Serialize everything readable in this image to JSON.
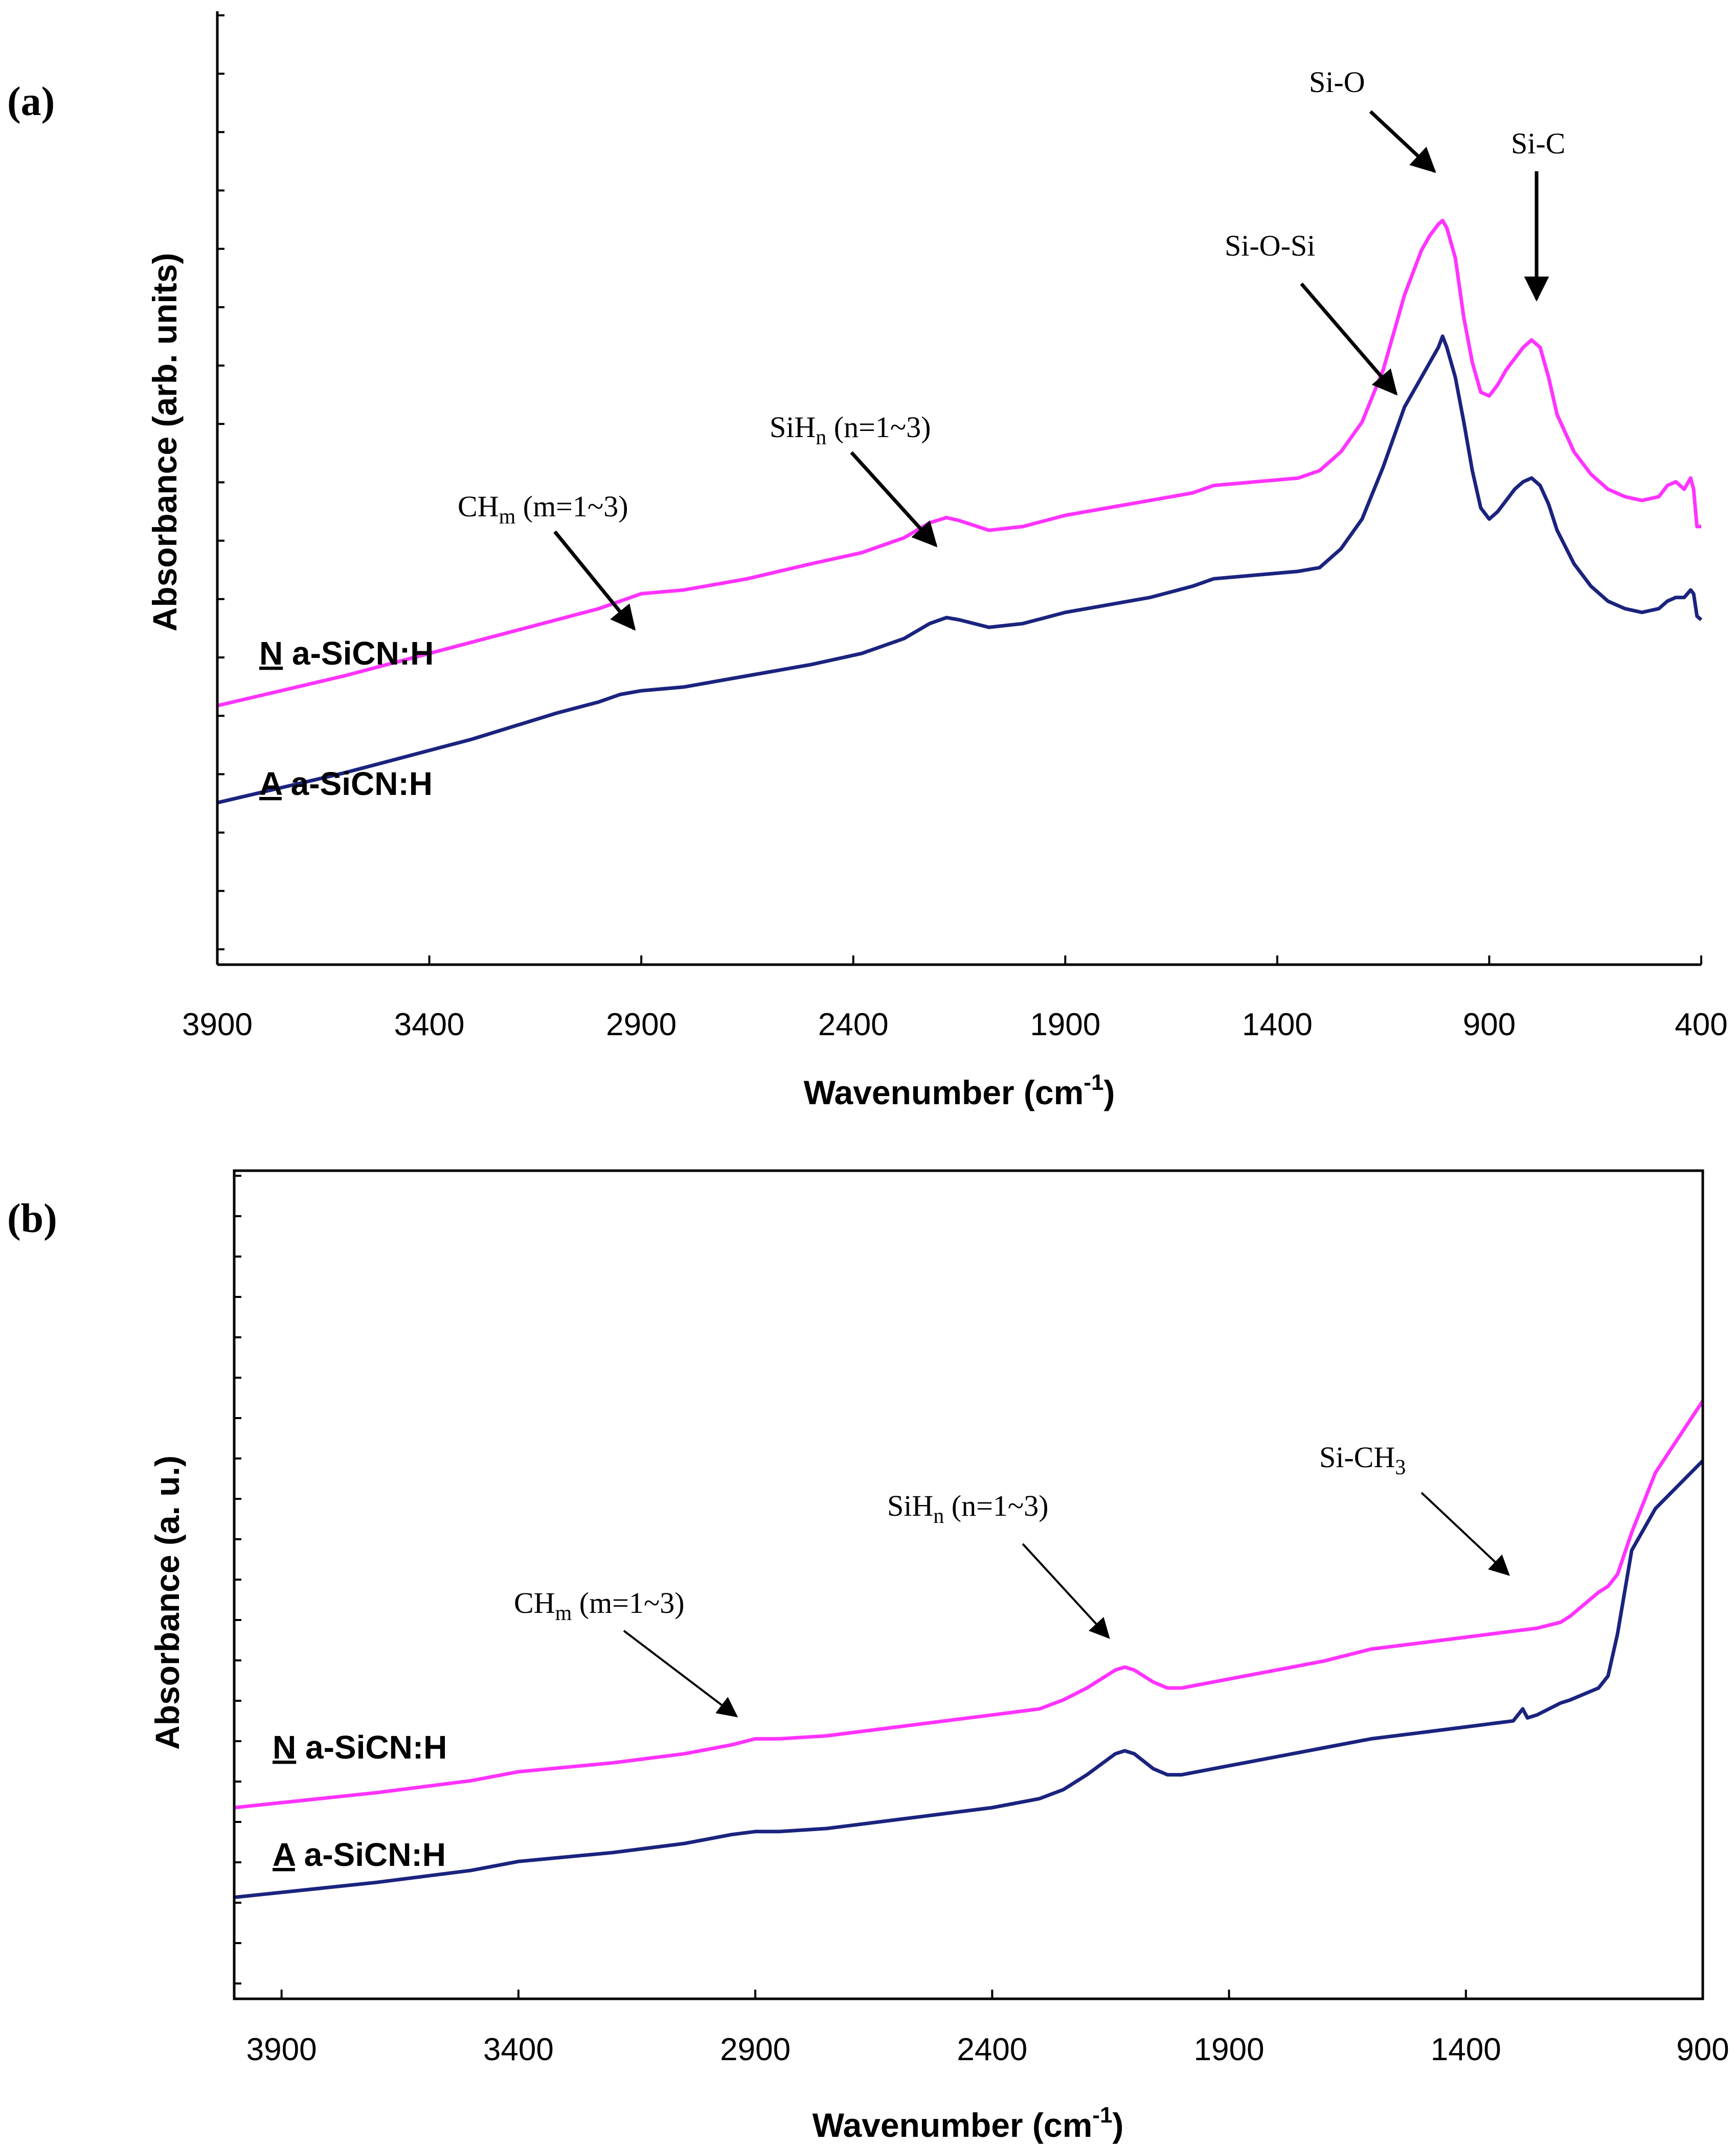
{
  "chart_data": [
    {
      "panel": "(a)",
      "type": "line",
      "xlabel": "Wavenumber (cm",
      "xlabel_sup": "-1",
      "xlabel_close": ")",
      "ylabel": "Absorbance (arb. units)",
      "xlim": [
        3900,
        400
      ],
      "x_ticks": [
        "3900",
        "3400",
        "2900",
        "2400",
        "1900",
        "1400",
        "900",
        "400"
      ],
      "ylim": [
        0,
        100
      ],
      "y_ticks_unlabeled": 16,
      "series": [
        {
          "name": "N a-SiCN:H",
          "prefix": "N",
          "suffix": " a-SiCN:H",
          "color": "#ff33ff",
          "x": [
            3900,
            3600,
            3300,
            3100,
            3000,
            2950,
            2900,
            2800,
            2650,
            2500,
            2380,
            2280,
            2220,
            2180,
            2150,
            2080,
            2000,
            1900,
            1800,
            1700,
            1600,
            1550,
            1450,
            1350,
            1300,
            1250,
            1200,
            1150,
            1100,
            1060,
            1040,
            1020,
            1010,
            1000,
            980,
            960,
            940,
            920,
            900,
            880,
            860,
            840,
            820,
            800,
            780,
            760,
            740,
            700,
            660,
            620,
            580,
            540,
            500,
            480,
            460,
            440,
            425,
            418,
            410,
            400
          ],
          "y": [
            26,
            30,
            34.5,
            37.5,
            39,
            40,
            41,
            41.5,
            43,
            45,
            46.5,
            48.5,
            50.5,
            51.2,
            50.8,
            49.5,
            50,
            51.5,
            52.5,
            53.5,
            54.5,
            55.5,
            56,
            56.5,
            57.5,
            60,
            64,
            71,
            81,
            87,
            89,
            90.5,
            91,
            90,
            86,
            78,
            72,
            68,
            67.5,
            69,
            71,
            72.5,
            74,
            75,
            74,
            70,
            65,
            60,
            57,
            55,
            54,
            53.5,
            54,
            55.5,
            56,
            55,
            56.5,
            55,
            50,
            50
          ]
        },
        {
          "name": "A a-SiCN:H",
          "prefix": "A",
          "suffix": " a-SiCN:H",
          "color": "#1a237e",
          "x": [
            3900,
            3600,
            3300,
            3100,
            3000,
            2950,
            2900,
            2800,
            2650,
            2500,
            2380,
            2280,
            2220,
            2180,
            2150,
            2080,
            2000,
            1900,
            1800,
            1700,
            1600,
            1550,
            1450,
            1350,
            1300,
            1250,
            1200,
            1150,
            1100,
            1060,
            1040,
            1020,
            1010,
            1000,
            980,
            960,
            940,
            920,
            900,
            880,
            860,
            840,
            820,
            800,
            780,
            760,
            740,
            700,
            660,
            620,
            580,
            540,
            500,
            480,
            460,
            440,
            425,
            418,
            410,
            400
          ],
          "y": [
            13,
            17,
            21.5,
            25,
            26.5,
            27.5,
            28,
            28.5,
            30,
            31.5,
            33,
            35,
            37,
            37.8,
            37.5,
            36.5,
            37,
            38.5,
            39.5,
            40.5,
            42,
            43,
            43.5,
            44,
            44.5,
            47,
            51,
            58,
            66,
            70,
            72,
            74,
            75.5,
            74,
            70,
            64,
            57.5,
            52.5,
            51,
            52,
            53.5,
            55,
            56,
            56.5,
            55.5,
            53,
            49.5,
            45,
            42,
            40,
            39,
            38.5,
            39,
            40,
            40.5,
            40.5,
            41.5,
            41,
            38,
            37.5
          ]
        }
      ],
      "annotations": [
        {
          "text": "CH",
          "sub": "m",
          "rest": " (m=1~3)"
        },
        {
          "text": "SiH",
          "sub": "n",
          "rest": " (n=1~3)"
        },
        {
          "text": "Si-O-Si",
          "sub": "",
          "rest": ""
        },
        {
          "text": "Si-O",
          "sub": "",
          "rest": ""
        },
        {
          "text": "Si-C",
          "sub": "",
          "rest": ""
        }
      ]
    },
    {
      "panel": "(b)",
      "type": "line",
      "xlabel": "Wavenumber (cm",
      "xlabel_sup": "-1",
      "xlabel_close": ")",
      "ylabel": "Absorbance (a. u.)",
      "xlim": [
        4000,
        900
      ],
      "x_ticks": [
        "3900",
        "3400",
        "2900",
        "2400",
        "1900",
        "1400",
        "900"
      ],
      "ylim": [
        0,
        100
      ],
      "y_ticks_unlabeled": 20,
      "series": [
        {
          "name": "N a-SiCN:H",
          "prefix": "N",
          "suffix": " a-SiCN:H",
          "color": "#ff33ff",
          "x": [
            4000,
            3700,
            3500,
            3400,
            3200,
            3050,
            2950,
            2900,
            2850,
            2750,
            2600,
            2400,
            2300,
            2250,
            2200,
            2140,
            2120,
            2100,
            2060,
            2030,
            2000,
            1900,
            1800,
            1700,
            1600,
            1500,
            1400,
            1350,
            1300,
            1250,
            1200,
            1180,
            1150,
            1120,
            1100,
            1080,
            1050,
            1000,
            950,
            900
          ],
          "y": [
            20,
            22.5,
            24.5,
            26,
            27.5,
            29,
            30.5,
            31.5,
            31.5,
            32,
            33.5,
            35.5,
            36.5,
            38,
            40,
            43,
            43.5,
            43,
            41,
            40,
            40,
            41.5,
            43,
            44.5,
            46.5,
            47.5,
            48.5,
            49,
            49.5,
            50,
            51,
            52,
            54,
            56,
            57,
            59,
            66,
            76,
            82,
            88
          ]
        },
        {
          "name": "A a-SiCN:H",
          "prefix": "A",
          "suffix": " a-SiCN:H",
          "color": "#1a237e",
          "x": [
            4000,
            3700,
            3500,
            3400,
            3200,
            3050,
            2950,
            2900,
            2850,
            2750,
            2600,
            2400,
            2300,
            2250,
            2200,
            2140,
            2120,
            2100,
            2060,
            2030,
            2000,
            1900,
            1800,
            1700,
            1600,
            1500,
            1400,
            1350,
            1300,
            1280,
            1270,
            1250,
            1200,
            1180,
            1150,
            1120,
            1100,
            1080,
            1050,
            1000,
            950,
            900
          ],
          "y": [
            5,
            7.5,
            9.5,
            11,
            12.5,
            14,
            15.5,
            16,
            16,
            16.5,
            18,
            20,
            21.5,
            23,
            25.5,
            29,
            29.5,
            29,
            26.5,
            25.5,
            25.5,
            27,
            28.5,
            30,
            31.5,
            32.5,
            33.5,
            34,
            34.5,
            36.5,
            35,
            35.5,
            37.5,
            38,
            39,
            40,
            42,
            49,
            63,
            70,
            74,
            78
          ]
        }
      ],
      "annotations": [
        {
          "text": "CH",
          "sub": "m",
          "rest": " (m=1~3)"
        },
        {
          "text": "SiH",
          "sub": "n",
          "rest": " (n=1~3)"
        },
        {
          "text": "Si-CH",
          "sub": "3",
          "rest": ""
        }
      ]
    }
  ]
}
